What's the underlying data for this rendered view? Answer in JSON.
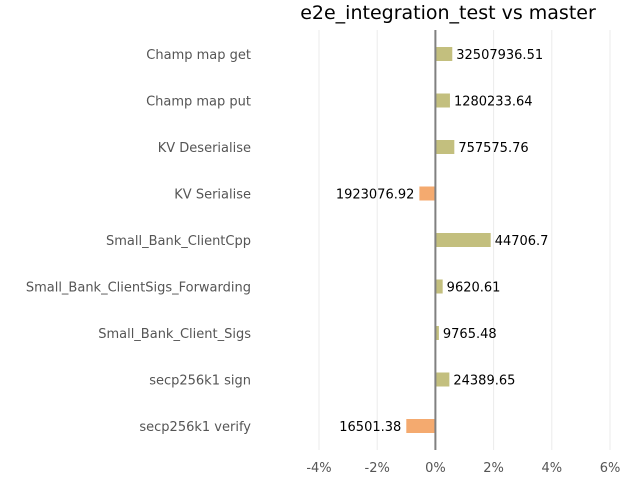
{
  "chart_data": {
    "type": "bar",
    "orientation": "horizontal",
    "title": "e2e_integration_test vs master",
    "xlabel": "",
    "ylabel": "",
    "xlim": [
      -4,
      6
    ],
    "x_ticks": [
      -4,
      -2,
      0,
      2,
      4,
      6
    ],
    "x_tick_labels": [
      "-4%",
      "-2%",
      "0%",
      "2%",
      "4%",
      "6%"
    ],
    "grid": "vertical",
    "categories": [
      "Champ map get",
      "Champ map put",
      "KV Deserialise",
      "KV Serialise",
      "Small_Bank_ClientCpp",
      "Small_Bank_ClientSigs_Forwarding",
      "Small_Bank_Client_Sigs",
      "secp256k1 sign",
      "secp256k1 verify"
    ],
    "values": [
      0.58,
      0.5,
      0.65,
      -0.55,
      1.9,
      0.25,
      0.12,
      0.48,
      -1.0
    ],
    "data_labels": [
      "32507936.51",
      "1280233.64",
      "757575.76",
      "1923076.92",
      "44706.7",
      "9620.61",
      "9765.48",
      "24389.65",
      "16501.38"
    ],
    "colors": {
      "positive": "#c3bf7e",
      "negative": "#f4aa6f",
      "zero_line": "#808080",
      "grid": "#ebebeb"
    }
  }
}
